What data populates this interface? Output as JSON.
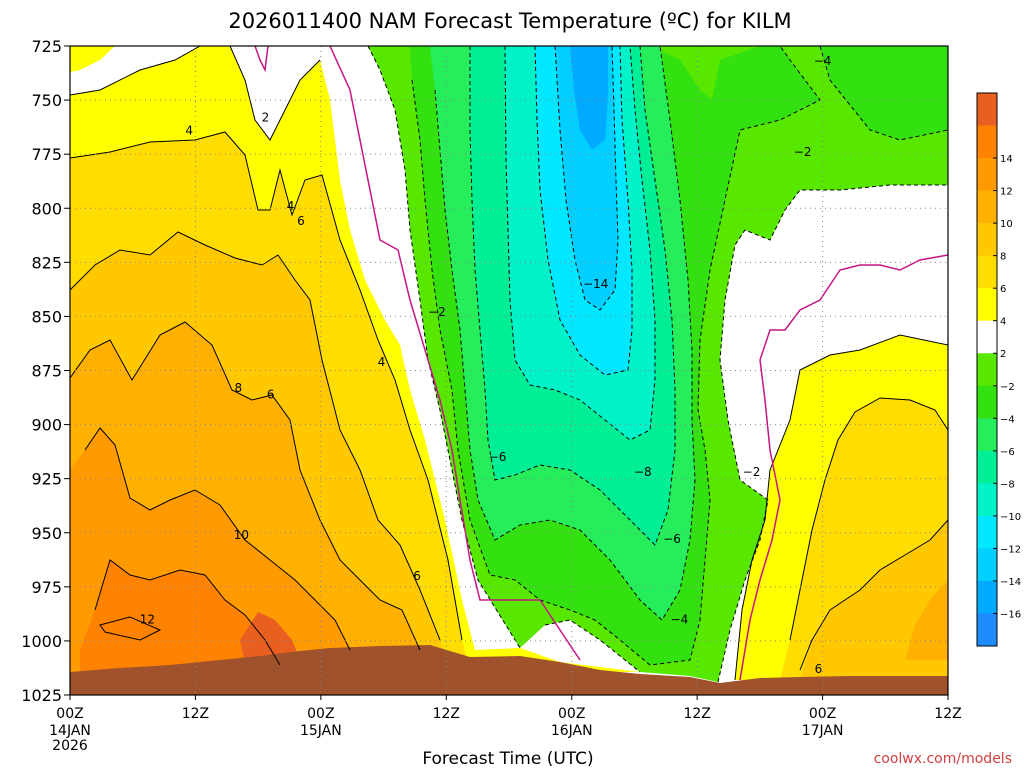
{
  "chart_data": {
    "type": "heatmap",
    "title": "2026011400 NAM Forecast Temperature (ºC) for KILM",
    "xlabel": "Forecast Time (UTC)",
    "ylabel": "",
    "x_ticks": [
      "00Z",
      "12Z",
      "00Z",
      "12Z",
      "00Z",
      "12Z",
      "00Z",
      "12Z"
    ],
    "x_date_labels": [
      {
        "index": 0,
        "lines": [
          "14JAN",
          "2026"
        ]
      },
      {
        "index": 2,
        "lines": [
          "15JAN"
        ]
      },
      {
        "index": 4,
        "lines": [
          "16JAN"
        ]
      },
      {
        "index": 6,
        "lines": [
          "17JAN"
        ]
      }
    ],
    "x_hours": [
      0,
      12,
      24,
      36,
      48,
      60,
      72,
      84
    ],
    "y_ticks": [
      725,
      750,
      775,
      800,
      825,
      850,
      875,
      900,
      925,
      950,
      975,
      1000,
      1025
    ],
    "ylim": [
      725,
      1025
    ],
    "y_reversed": true,
    "grid": true,
    "colorbar": {
      "ticks": [
        -16,
        -14,
        -12,
        -10,
        -8,
        -6,
        -4,
        -2,
        2,
        4,
        6,
        8,
        10,
        12,
        14
      ],
      "colors": [
        "#1e8cff",
        "#00aaff",
        "#00cfff",
        "#00e8ff",
        "#00f2c8",
        "#00ee96",
        "#25ee5a",
        "#33e010",
        "#58e800",
        "#ffffff",
        "#ffff00",
        "#ffdd00",
        "#ffc800",
        "#ffb000",
        "#ff9a00",
        "#ff8200",
        "#e85f20"
      ]
    },
    "contours": [
      {
        "value": -14,
        "x_hour": 50.3,
        "pressure": 835
      },
      {
        "value": -8,
        "x_hour": 54.8,
        "pressure": 922
      },
      {
        "value": -6,
        "x_hour": 40.9,
        "pressure": 915
      },
      {
        "value": -6,
        "x_hour": 57.6,
        "pressure": 953
      },
      {
        "value": -4,
        "x_hour": 58.3,
        "pressure": 990
      },
      {
        "value": -4,
        "x_hour": 72.0,
        "pressure": 732
      },
      {
        "value": -2,
        "x_hour": 35.1,
        "pressure": 848
      },
      {
        "value": -2,
        "x_hour": 65.2,
        "pressure": 922
      },
      {
        "value": -2,
        "x_hour": 70.1,
        "pressure": 774
      },
      {
        "value": 2,
        "x_hour": 18.7,
        "pressure": 758
      },
      {
        "value": 4,
        "x_hour": 11.4,
        "pressure": 764
      },
      {
        "value": 4,
        "x_hour": 21.1,
        "pressure": 799
      },
      {
        "value": 4,
        "x_hour": 29.8,
        "pressure": 871
      },
      {
        "value": 6,
        "x_hour": 22.1,
        "pressure": 806
      },
      {
        "value": 6,
        "x_hour": 19.2,
        "pressure": 886
      },
      {
        "value": 6,
        "x_hour": 33.2,
        "pressure": 970
      },
      {
        "value": 6,
        "x_hour": 71.6,
        "pressure": 1013
      },
      {
        "value": 8,
        "x_hour": 16.1,
        "pressure": 883
      },
      {
        "value": 10,
        "x_hour": 16.4,
        "pressure": 951
      },
      {
        "value": 12,
        "x_hour": 7.4,
        "pressure": 990
      }
    ]
  },
  "credit": "coolwx.com/models",
  "colors": {
    "ground": "#a0522d",
    "freezing_line": "#c71585",
    "credit": "#d04040"
  }
}
